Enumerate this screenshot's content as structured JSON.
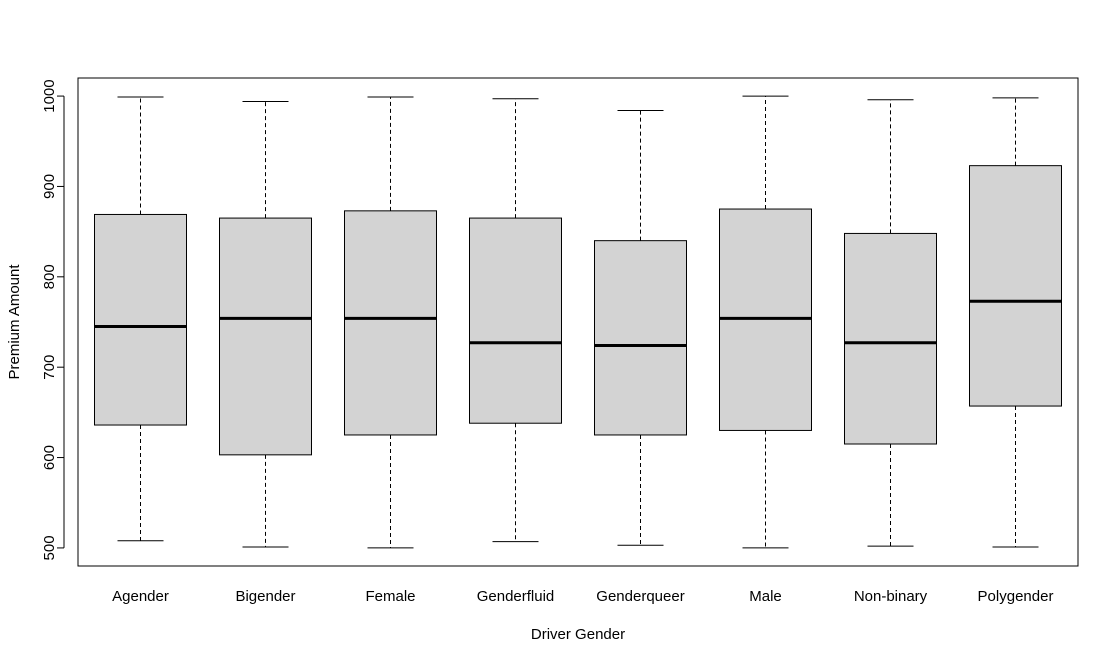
{
  "chart_data": {
    "type": "box",
    "title": "",
    "xlabel": "Driver Gender",
    "ylabel": "Premium Amount",
    "ylim": [
      480,
      1020
    ],
    "yticks": [
      500,
      600,
      700,
      800,
      900,
      1000
    ],
    "grid": false,
    "legend": "none",
    "box_fill": "#d3d3d3",
    "stroke": "#000000",
    "categories": [
      "Agender",
      "Bigender",
      "Female",
      "Genderfluid",
      "Genderqueer",
      "Male",
      "Non-binary",
      "Polygender"
    ],
    "boxes": [
      {
        "category": "Agender",
        "min": 508,
        "q1": 636,
        "median": 745,
        "q3": 869,
        "max": 999
      },
      {
        "category": "Bigender",
        "min": 501,
        "q1": 603,
        "median": 754,
        "q3": 865,
        "max": 994
      },
      {
        "category": "Female",
        "min": 500,
        "q1": 625,
        "median": 754,
        "q3": 873,
        "max": 999
      },
      {
        "category": "Genderfluid",
        "min": 507,
        "q1": 638,
        "median": 727,
        "q3": 865,
        "max": 997
      },
      {
        "category": "Genderqueer",
        "min": 503,
        "q1": 625,
        "median": 724,
        "q3": 840,
        "max": 984
      },
      {
        "category": "Male",
        "min": 500,
        "q1": 630,
        "median": 754,
        "q3": 875,
        "max": 1000
      },
      {
        "category": "Non-binary",
        "min": 502,
        "q1": 615,
        "median": 727,
        "q3": 848,
        "max": 996
      },
      {
        "category": "Polygender",
        "min": 501,
        "q1": 657,
        "median": 773,
        "q3": 923,
        "max": 998
      }
    ]
  }
}
